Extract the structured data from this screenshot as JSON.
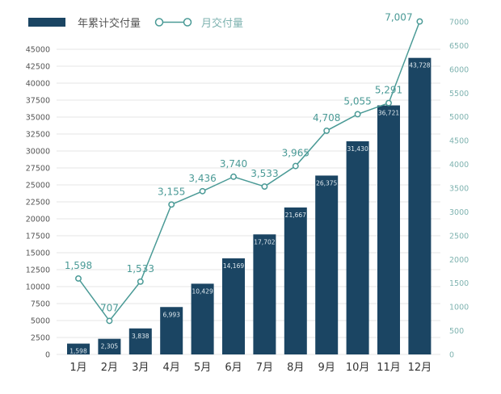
{
  "chart_data": {
    "type": "bar+line",
    "categories": [
      "1月",
      "2月",
      "3月",
      "4月",
      "5月",
      "6月",
      "7月",
      "8月",
      "9月",
      "10月",
      "11月",
      "12月"
    ],
    "series": [
      {
        "name": "年累计交付量",
        "type": "bar",
        "axis": "left",
        "color": "#1b4563",
        "values": [
          1598,
          2305,
          3838,
          6993,
          10429,
          14169,
          17702,
          21667,
          26375,
          31430,
          36721,
          43728
        ],
        "labels": [
          "1,598",
          "2,305",
          "3,838",
          "6,993",
          "10,429",
          "14,169",
          "17,702",
          "21,667",
          "26,375",
          "31,430",
          "36,721",
          "43,728"
        ]
      },
      {
        "name": "月交付量",
        "type": "line",
        "axis": "right",
        "color": "#4a9a96",
        "values": [
          1598,
          707,
          1533,
          3155,
          3436,
          3740,
          3533,
          3965,
          4708,
          5055,
          5291,
          7007
        ],
        "labels": [
          "1,598",
          "707",
          "1,533",
          "3,155",
          "3,436",
          "3,740",
          "3,533",
          "3,965",
          "4,708",
          "5,055",
          "5,291",
          "7,007"
        ]
      }
    ],
    "left_axis": {
      "ylim": [
        0,
        45000
      ],
      "ticks": [
        "0",
        "2500",
        "5000",
        "7500",
        "10000",
        "12500",
        "15000",
        "17500",
        "20000",
        "22500",
        "25000",
        "27500",
        "30000",
        "32500",
        "35000",
        "37500",
        "40000",
        "42500",
        "45000"
      ]
    },
    "right_axis": {
      "ylim": [
        0,
        7000
      ],
      "ticks": [
        "0",
        "500",
        "1000",
        "1500",
        "2000",
        "2500",
        "3000",
        "3500",
        "4000",
        "4500",
        "5000",
        "5500",
        "6000",
        "6500",
        "7000"
      ]
    },
    "grid": true,
    "legend_position": "top-left"
  }
}
